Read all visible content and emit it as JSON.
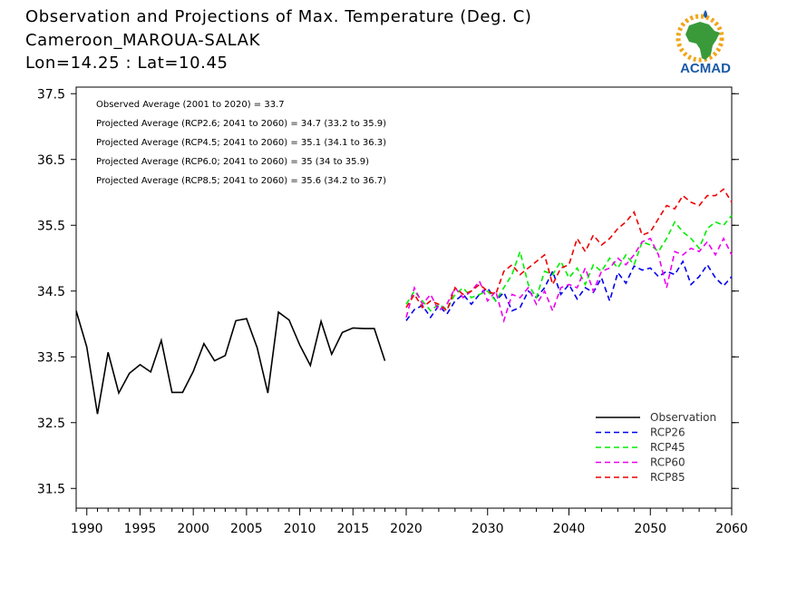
{
  "header": {
    "title": "Observation and Projections of Max. Temperature (Deg. C)",
    "location": "Cameroon_MAROUA-SALAK",
    "coords": "Lon=14.25 : Lat=10.45"
  },
  "logo": {
    "text": "ACMAD",
    "icon": "africa-map-logo-icon",
    "colors": {
      "africa": "#3a9a3a",
      "sun": "#f2a51a",
      "text": "#1a5aa8"
    }
  },
  "chart_data": {
    "type": "line",
    "ylim": [
      31.2,
      37.6
    ],
    "yticks": [
      31.5,
      32.5,
      33.5,
      34.5,
      35.5,
      36.5,
      37.5
    ],
    "segment1": {
      "xlim": [
        1989,
        2020
      ],
      "xticks": [
        1990,
        1995,
        2000,
        2005,
        2010,
        2015,
        2020
      ]
    },
    "segment2": {
      "xlim": [
        2020,
        2060
      ],
      "xticks": [
        2030,
        2040,
        2050,
        2060
      ]
    },
    "annotations": [
      "Observed Average (2001 to 2020) = 33.7",
      "Projected Average (RCP2.6; 2041 to 2060) = 34.7 (33.2 to 35.9)",
      "Projected Average (RCP4.5; 2041 to 2060) = 35.1 (34.1 to 36.3)",
      "Projected Average (RCP6.0; 2041 to 2060) = 35 (34 to 35.9)",
      "Projected Average (RCP8.5; 2041 to 2060) = 35.6 (34.2 to 36.7)"
    ],
    "legend_position": "bottom-right",
    "series": [
      {
        "name": "Observation",
        "color": "#000000",
        "dashed": false,
        "start": 1989,
        "values": [
          34.2,
          33.65,
          32.63,
          33.57,
          32.95,
          33.25,
          33.38,
          33.27,
          33.75,
          32.96,
          32.96,
          33.28,
          33.7,
          33.44,
          33.52,
          34.05,
          34.08,
          33.64,
          32.95,
          34.18,
          34.06,
          33.68,
          33.37,
          34.04,
          33.54,
          33.87,
          33.94,
          33.93,
          33.93,
          33.44
        ]
      },
      {
        "name": "RCP26",
        "color": "#0000ee",
        "dashed": true,
        "start": 2020,
        "values": [
          34.05,
          34.22,
          34.28,
          34.1,
          34.28,
          34.15,
          34.35,
          34.45,
          34.3,
          34.45,
          34.55,
          34.35,
          34.48,
          34.2,
          34.25,
          34.5,
          34.4,
          34.55,
          34.8,
          34.45,
          34.6,
          34.38,
          34.55,
          34.48,
          34.7,
          34.35,
          34.78,
          34.62,
          34.88,
          34.82,
          34.85,
          34.72,
          34.8,
          34.75,
          34.95,
          34.6,
          34.72,
          34.9,
          34.7,
          34.58,
          34.72
        ]
      },
      {
        "name": "RCP45",
        "color": "#00ee00",
        "dashed": true,
        "start": 2020,
        "values": [
          34.3,
          34.5,
          34.35,
          34.2,
          34.3,
          34.22,
          34.45,
          34.55,
          34.4,
          34.45,
          34.5,
          34.35,
          34.55,
          34.75,
          35.1,
          34.6,
          34.4,
          34.8,
          34.75,
          34.95,
          34.7,
          34.85,
          34.6,
          34.9,
          34.8,
          35.0,
          34.85,
          35.05,
          34.9,
          35.25,
          35.2,
          35.1,
          35.3,
          35.55,
          35.4,
          35.3,
          35.15,
          35.45,
          35.55,
          35.5,
          35.65
        ]
      },
      {
        "name": "RCP60",
        "color": "#ee00ee",
        "dashed": true,
        "start": 2020,
        "values": [
          34.1,
          34.55,
          34.3,
          34.45,
          34.2,
          34.3,
          34.55,
          34.4,
          34.5,
          34.65,
          34.35,
          34.5,
          34.05,
          34.45,
          34.4,
          34.55,
          34.3,
          34.5,
          34.2,
          34.55,
          34.6,
          34.55,
          34.85,
          34.5,
          34.8,
          34.85,
          35.0,
          34.9,
          35.05,
          35.25,
          35.3,
          35.05,
          34.55,
          35.1,
          35.05,
          35.15,
          35.1,
          35.25,
          35.05,
          35.3,
          35.05
        ]
      },
      {
        "name": "RCP85",
        "color": "#ee0000",
        "dashed": true,
        "start": 2020,
        "values": [
          34.25,
          34.45,
          34.25,
          34.35,
          34.3,
          34.2,
          34.55,
          34.45,
          34.5,
          34.6,
          34.5,
          34.45,
          34.8,
          34.9,
          34.75,
          34.85,
          34.95,
          35.05,
          34.6,
          34.85,
          34.9,
          35.3,
          35.1,
          35.35,
          35.2,
          35.3,
          35.45,
          35.55,
          35.7,
          35.35,
          35.4,
          35.6,
          35.8,
          35.75,
          35.95,
          35.85,
          35.8,
          35.95,
          35.95,
          36.05,
          35.85
        ]
      }
    ]
  }
}
